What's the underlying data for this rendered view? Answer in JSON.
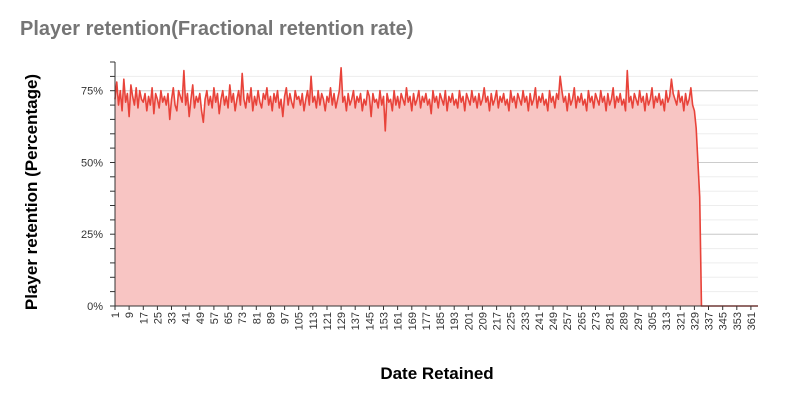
{
  "chart_data": {
    "type": "area",
    "title": "Player retention(Fractional retention rate)",
    "xlabel": "Date Retained",
    "ylabel": "Player retention (Percentage)",
    "ylim": [
      0,
      0.85
    ],
    "y_ticks": [
      {
        "value": 0,
        "label": "0%"
      },
      {
        "value": 0.25,
        "label": "25%"
      },
      {
        "value": 0.5,
        "label": "50%"
      },
      {
        "value": 0.75,
        "label": "75%"
      }
    ],
    "grid": true,
    "legend": "none",
    "x_range": [
      1,
      365
    ],
    "x_tick_start": 1,
    "x_tick_step": 8,
    "x_tick_end": 361,
    "series": [
      {
        "color": "#e8433a",
        "fill": "#f8c5c3",
        "values": [
          0.72,
          0.78,
          0.7,
          0.75,
          0.68,
          0.79,
          0.71,
          0.74,
          0.66,
          0.77,
          0.73,
          0.7,
          0.76,
          0.69,
          0.75,
          0.72,
          0.71,
          0.74,
          0.68,
          0.73,
          0.7,
          0.76,
          0.67,
          0.74,
          0.72,
          0.69,
          0.75,
          0.71,
          0.73,
          0.7,
          0.74,
          0.65,
          0.72,
          0.76,
          0.7,
          0.68,
          0.75,
          0.73,
          0.71,
          0.82,
          0.7,
          0.74,
          0.66,
          0.72,
          0.77,
          0.69,
          0.73,
          0.71,
          0.74,
          0.68,
          0.64,
          0.72,
          0.75,
          0.7,
          0.73,
          0.69,
          0.76,
          0.71,
          0.74,
          0.67,
          0.72,
          0.75,
          0.7,
          0.73,
          0.69,
          0.77,
          0.71,
          0.74,
          0.68,
          0.72,
          0.75,
          0.7,
          0.81,
          0.72,
          0.69,
          0.74,
          0.71,
          0.76,
          0.68,
          0.73,
          0.7,
          0.75,
          0.71,
          0.69,
          0.74,
          0.72,
          0.76,
          0.7,
          0.73,
          0.68,
          0.74,
          0.71,
          0.75,
          0.69,
          0.72,
          0.66,
          0.73,
          0.76,
          0.7,
          0.74,
          0.71,
          0.69,
          0.75,
          0.72,
          0.73,
          0.7,
          0.74,
          0.68,
          0.72,
          0.75,
          0.7,
          0.8,
          0.71,
          0.73,
          0.69,
          0.75,
          0.7,
          0.74,
          0.72,
          0.68,
          0.73,
          0.71,
          0.76,
          0.7,
          0.74,
          0.69,
          0.72,
          0.75,
          0.83,
          0.71,
          0.73,
          0.68,
          0.74,
          0.7,
          0.72,
          0.75,
          0.69,
          0.73,
          0.71,
          0.74,
          0.68,
          0.72,
          0.7,
          0.75,
          0.73,
          0.66,
          0.74,
          0.71,
          0.72,
          0.69,
          0.75,
          0.7,
          0.73,
          0.61,
          0.74,
          0.71,
          0.72,
          0.68,
          0.75,
          0.7,
          0.73,
          0.69,
          0.74,
          0.72,
          0.7,
          0.76,
          0.71,
          0.73,
          0.68,
          0.74,
          0.7,
          0.72,
          0.75,
          0.69,
          0.73,
          0.71,
          0.74,
          0.7,
          0.72,
          0.67,
          0.75,
          0.71,
          0.73,
          0.69,
          0.74,
          0.72,
          0.7,
          0.75,
          0.68,
          0.73,
          0.71,
          0.74,
          0.7,
          0.72,
          0.69,
          0.75,
          0.71,
          0.73,
          0.68,
          0.74,
          0.72,
          0.7,
          0.75,
          0.71,
          0.73,
          0.69,
          0.74,
          0.7,
          0.72,
          0.76,
          0.71,
          0.73,
          0.68,
          0.74,
          0.7,
          0.72,
          0.75,
          0.69,
          0.73,
          0.71,
          0.74,
          0.7,
          0.72,
          0.68,
          0.75,
          0.71,
          0.73,
          0.69,
          0.74,
          0.72,
          0.7,
          0.75,
          0.71,
          0.73,
          0.68,
          0.74,
          0.7,
          0.72,
          0.76,
          0.69,
          0.73,
          0.71,
          0.74,
          0.7,
          0.72,
          0.68,
          0.75,
          0.71,
          0.73,
          0.69,
          0.74,
          0.72,
          0.8,
          0.75,
          0.71,
          0.73,
          0.68,
          0.74,
          0.7,
          0.72,
          0.76,
          0.69,
          0.73,
          0.71,
          0.74,
          0.7,
          0.72,
          0.68,
          0.75,
          0.71,
          0.73,
          0.69,
          0.74,
          0.72,
          0.7,
          0.75,
          0.71,
          0.73,
          0.68,
          0.74,
          0.7,
          0.72,
          0.76,
          0.69,
          0.73,
          0.71,
          0.74,
          0.7,
          0.72,
          0.68,
          0.82,
          0.71,
          0.73,
          0.69,
          0.74,
          0.72,
          0.7,
          0.75,
          0.71,
          0.73,
          0.68,
          0.74,
          0.7,
          0.72,
          0.76,
          0.69,
          0.73,
          0.71,
          0.74,
          0.7,
          0.72,
          0.68,
          0.75,
          0.71,
          0.73,
          0.79,
          0.74,
          0.72,
          0.7,
          0.75,
          0.71,
          0.73,
          0.68,
          0.74,
          0.7,
          0.72,
          0.76,
          0.7,
          0.68,
          0.62,
          0.5,
          0.38,
          0,
          0,
          0,
          0,
          0,
          0,
          0,
          0,
          0,
          0,
          0,
          0,
          0,
          0,
          0,
          0,
          0,
          0,
          0,
          0,
          0,
          0,
          0,
          0,
          0,
          0,
          0,
          0,
          0,
          0,
          0,
          0,
          0
        ]
      }
    ]
  }
}
